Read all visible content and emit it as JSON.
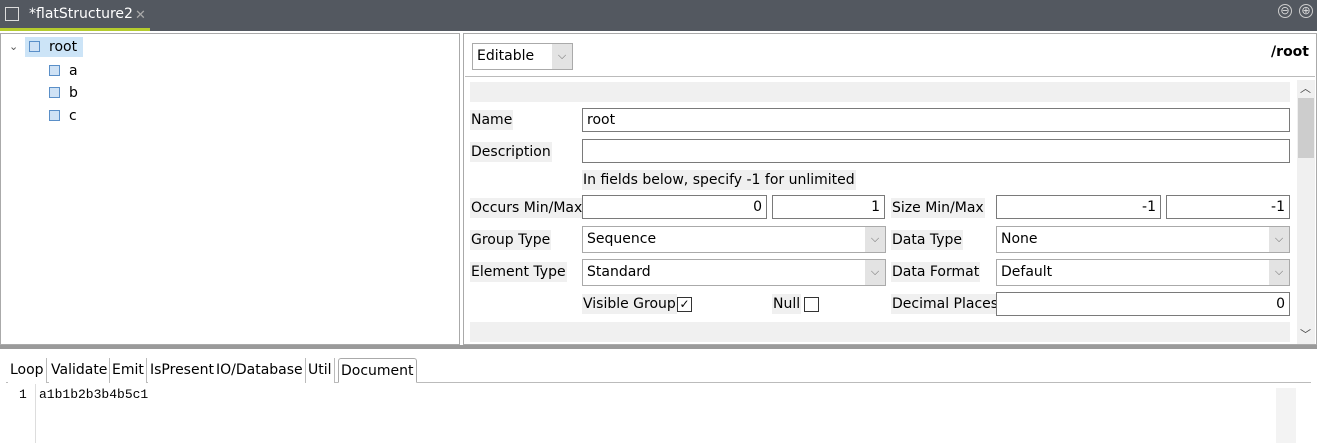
{
  "editor_tab": {
    "title": "*flatStructure2",
    "icon": "structure-icon"
  },
  "window_controls": {
    "minimize": "⊖",
    "maximize": "⊕"
  },
  "tree": {
    "root": "root",
    "children": [
      "a",
      "b",
      "c"
    ]
  },
  "top": {
    "mode": "Editable",
    "path": "/root"
  },
  "form": {
    "name_label": "Name",
    "name_value": "root",
    "description_label": "Description",
    "description_value": "",
    "hint": "In fields below, specify -1 for unlimited",
    "occurs_label": "Occurs Min/Max",
    "occurs_min": "0",
    "occurs_max": "1",
    "size_label": "Size Min/Max",
    "size_min": "-1",
    "size_max": "-1",
    "group_type_label": "Group Type",
    "group_type": "Sequence",
    "data_type_label": "Data Type",
    "data_type": "None",
    "element_type_label": "Element Type",
    "element_type": "Standard",
    "data_format_label": "Data Format",
    "data_format": "Default",
    "visible_group_label": "Visible Group",
    "visible_group": true,
    "null_label": "Null",
    "null": false,
    "decimal_places_label": "Decimal Places",
    "decimal_places": "0"
  },
  "bottom_tabs": [
    "Loop",
    "Validate",
    "Emit",
    "IsPresent",
    "IO/Database",
    "Util",
    "Document"
  ],
  "active_bottom_tab": "Document",
  "document": {
    "line_number": "1",
    "text": "a1b1b2b3b4b5c1"
  }
}
